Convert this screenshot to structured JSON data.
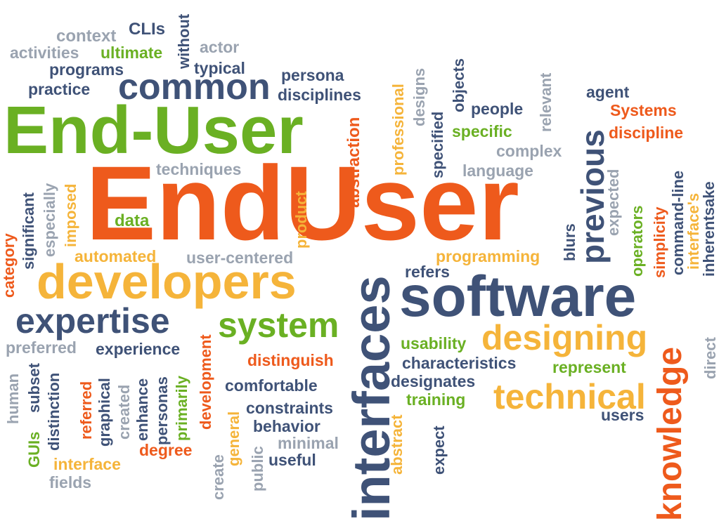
{
  "words": {
    "end_user_phrase": "End-User",
    "end_user": "EndUser",
    "software": "software",
    "developers": "developers",
    "interfaces": "interfaces",
    "common": "common",
    "system": "system",
    "expertise": "expertise",
    "designing": "designing",
    "technical": "technical",
    "knowledge": "knowledge",
    "previous": "previous",
    "context": "context",
    "clis": "CLIs",
    "without": "without",
    "activities": "activities",
    "ultimate": "ultimate",
    "actor": "actor",
    "programs": "programs",
    "typical": "typical",
    "persona": "persona",
    "practice": "practice",
    "disciplines": "disciplines",
    "abstraction": "abstraction",
    "professional": "professional",
    "designs": "designs",
    "specified": "specified",
    "objects": "objects",
    "people": "people",
    "relevant": "relevant",
    "agent": "agent",
    "systems": "Systems",
    "discipline": "discipline",
    "specific": "specific",
    "complex": "complex",
    "language": "language",
    "techniques": "techniques",
    "product": "product",
    "data": "data",
    "imposed": "imposed",
    "especially": "especially",
    "significant": "significant",
    "category": "category",
    "automated": "automated",
    "user_centered": "user-centered",
    "programming": "programming",
    "refers": "refers",
    "blurs": "blurs",
    "expected": "expected",
    "operators": "operators",
    "simplicity": "simplicity",
    "command_line": "command-line",
    "interfaces_apos": "interface's",
    "inherentsake": "inherentsake",
    "preferred": "preferred",
    "experience": "experience",
    "human": "human",
    "subset": "subset",
    "distinction": "distinction",
    "referred": "referred",
    "graphical": "graphical",
    "created": "created",
    "enhance": "enhance",
    "personas": "personas",
    "primarily": "primarily",
    "development": "development",
    "distinguish": "distinguish",
    "comfortable": "comfortable",
    "constraints": "constraints",
    "behavior": "behavior",
    "minimal": "minimal",
    "useful": "useful",
    "public": "public",
    "general": "general",
    "create": "create",
    "degree": "degree",
    "interface": "interface",
    "fields": "fields",
    "guis": "GUIs",
    "usability": "usability",
    "characteristics": "characteristics",
    "designates": "designates",
    "training": "training",
    "represent": "represent",
    "users": "users",
    "abstract": "abstract",
    "expect": "expect",
    "direct": "direct"
  }
}
